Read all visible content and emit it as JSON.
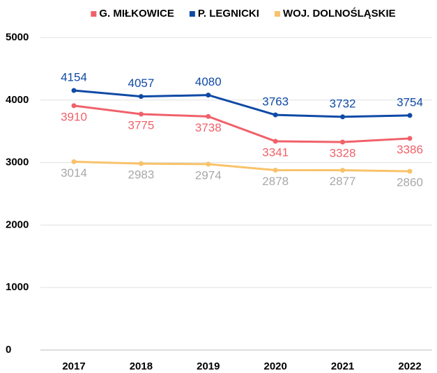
{
  "chart_data": {
    "type": "line",
    "categories": [
      "2017",
      "2018",
      "2019",
      "2020",
      "2021",
      "2022"
    ],
    "series": [
      {
        "name": "G. MIŁKOWICE",
        "color": "#f0616a",
        "label_color": "#f0616a",
        "values": [
          3910,
          3775,
          3738,
          3341,
          3328,
          3386
        ]
      },
      {
        "name": "P. LEGNICKI",
        "color": "#0f4aa5",
        "label_color": "#0f4aa5",
        "values": [
          4154,
          4057,
          4080,
          3763,
          3732,
          3754
        ]
      },
      {
        "name": "WOJ. DOLNOŚLĄSKIE",
        "color": "#f9c26a",
        "label_color": "#a8a8a8",
        "values": [
          3014,
          2983,
          2974,
          2878,
          2877,
          2860
        ]
      }
    ],
    "ylim": [
      0,
      5000
    ],
    "yticks": [
      0,
      1000,
      2000,
      3000,
      4000,
      5000
    ],
    "grid": true,
    "legend": "top"
  }
}
